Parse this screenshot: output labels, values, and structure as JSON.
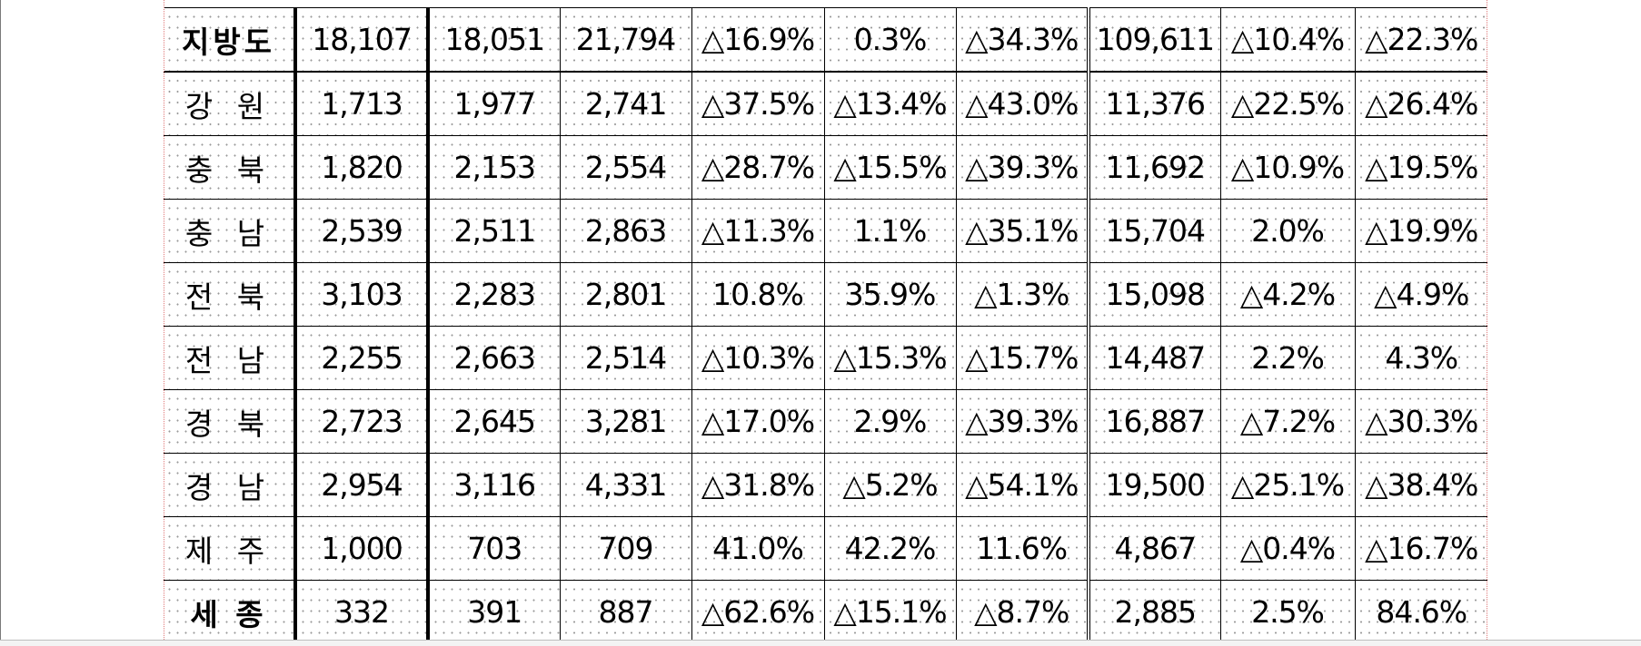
{
  "table": {
    "rows": [
      {
        "label": "지방도",
        "bold": true,
        "cells": [
          "18,107",
          "18,051",
          "21,794",
          "△16.9%",
          "0.3%",
          "△34.3%",
          "109,611",
          "△10.4%",
          "△22.3%"
        ]
      },
      {
        "label": "강 원",
        "bold": false,
        "cells": [
          "1,713",
          "1,977",
          "2,741",
          "△37.5%",
          "△13.4%",
          "△43.0%",
          "11,376",
          "△22.5%",
          "△26.4%"
        ]
      },
      {
        "label": "충 북",
        "bold": false,
        "cells": [
          "1,820",
          "2,153",
          "2,554",
          "△28.7%",
          "△15.5%",
          "△39.3%",
          "11,692",
          "△10.9%",
          "△19.5%"
        ]
      },
      {
        "label": "충 남",
        "bold": false,
        "cells": [
          "2,539",
          "2,511",
          "2,863",
          "△11.3%",
          "1.1%",
          "△35.1%",
          "15,704",
          "2.0%",
          "△19.9%"
        ]
      },
      {
        "label": "전 북",
        "bold": false,
        "cells": [
          "3,103",
          "2,283",
          "2,801",
          "10.8%",
          "35.9%",
          "△1.3%",
          "15,098",
          "△4.2%",
          "△4.9%"
        ]
      },
      {
        "label": "전 남",
        "bold": false,
        "cells": [
          "2,255",
          "2,663",
          "2,514",
          "△10.3%",
          "△15.3%",
          "△15.7%",
          "14,487",
          "2.2%",
          "4.3%"
        ]
      },
      {
        "label": "경 북",
        "bold": false,
        "cells": [
          "2,723",
          "2,645",
          "3,281",
          "△17.0%",
          "2.9%",
          "△39.3%",
          "16,887",
          "△7.2%",
          "△30.3%"
        ]
      },
      {
        "label": "경 남",
        "bold": false,
        "cells": [
          "2,954",
          "3,116",
          "4,331",
          "△31.8%",
          "△5.2%",
          "△54.1%",
          "19,500",
          "△25.1%",
          "△38.4%"
        ]
      },
      {
        "label": "제 주",
        "bold": false,
        "cells": [
          "1,000",
          "703",
          "709",
          "41.0%",
          "42.2%",
          "11.6%",
          "4,867",
          "△0.4%",
          "△16.7%"
        ]
      },
      {
        "label": "세 종",
        "bold": true,
        "cells": [
          "332",
          "391",
          "887",
          "△62.6%",
          "△15.1%",
          "△8.7%",
          "2,885",
          "2.5%",
          "84.6%"
        ]
      }
    ]
  },
  "colors": {
    "guide": "#e07a7a",
    "rule": "#000000"
  }
}
